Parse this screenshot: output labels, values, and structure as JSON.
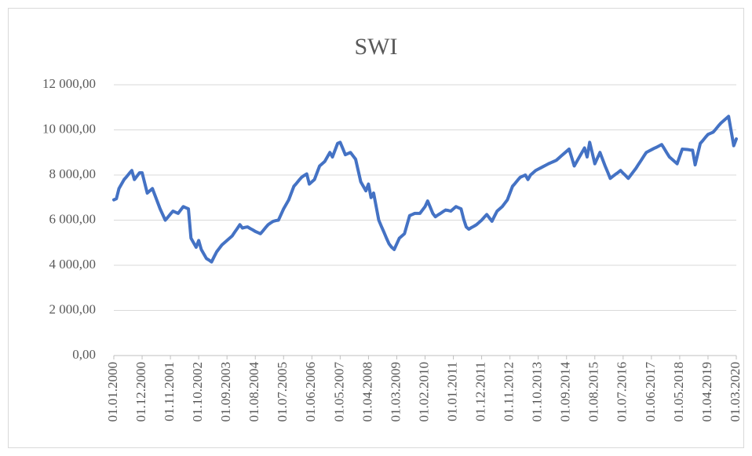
{
  "chart_data": {
    "type": "line",
    "title": "SWI",
    "categories": [
      "01.01.2000",
      null,
      null,
      null,
      null,
      null,
      null,
      null,
      null,
      null,
      null,
      "01.12.2000",
      null,
      null,
      null,
      null,
      null,
      null,
      null,
      null,
      null,
      null,
      "01.11.2001",
      null,
      null,
      null,
      null,
      null,
      null,
      null,
      null,
      null,
      null,
      "01.10.2002",
      null,
      null,
      null,
      null,
      null,
      null,
      null,
      null,
      null,
      null,
      "01.09.2003",
      null,
      null,
      null,
      null,
      null,
      null,
      null,
      null,
      null,
      null,
      "01.08.2004",
      null,
      null,
      null,
      null,
      null,
      null,
      null,
      null,
      null,
      null,
      "01.07.2005",
      null,
      null,
      null,
      null,
      null,
      null,
      null,
      null,
      null,
      null,
      "01.06.2006",
      null,
      null,
      null,
      null,
      null,
      null,
      null,
      null,
      null,
      null,
      "01.05.2007",
      null,
      null,
      null,
      null,
      null,
      null,
      null,
      null,
      null,
      null,
      "01.04.2008",
      null,
      null,
      null,
      null,
      null,
      null,
      null,
      null,
      null,
      null,
      "01.03.2009",
      null,
      null,
      null,
      null,
      null,
      null,
      null,
      null,
      null,
      null,
      "01.02.2010",
      null,
      null,
      null,
      null,
      null,
      null,
      null,
      null,
      null,
      null,
      "01.01.2011",
      null,
      null,
      null,
      null,
      null,
      null,
      null,
      null,
      null,
      null,
      "01.12.2011",
      null,
      null,
      null,
      null,
      null,
      null,
      null,
      null,
      null,
      null,
      "01.11.2012",
      null,
      null,
      null,
      null,
      null,
      null,
      null,
      null,
      null,
      null,
      "01.10.2013",
      null,
      null,
      null,
      null,
      null,
      null,
      null,
      null,
      null,
      null,
      "01.09.2014",
      null,
      null,
      null,
      null,
      null,
      null,
      null,
      null,
      null,
      null,
      "01.08.2015",
      null,
      null,
      null,
      null,
      null,
      null,
      null,
      null,
      null,
      null,
      "01.07.2016",
      null,
      null,
      null,
      null,
      null,
      null,
      null,
      null,
      null,
      null,
      "01.06.2017",
      null,
      null,
      null,
      null,
      null,
      null,
      null,
      null,
      null,
      null,
      "01.05.2018",
      null,
      null,
      null,
      null,
      null,
      null,
      null,
      null,
      null,
      null,
      "01.04.2019",
      null,
      null,
      null,
      null,
      null,
      null,
      null,
      null,
      null,
      null,
      "01.03.2020"
    ],
    "series": [
      {
        "name": "SWI",
        "color": "#4472c4",
        "values": [
          6900,
          6950,
          7400,
          7600,
          7800,
          7930,
          8070,
          8200,
          7800,
          7950,
          8100,
          8100,
          7650,
          7200,
          7300,
          7400,
          7100,
          6800,
          6500,
          6250,
          6000,
          6130,
          6270,
          6400,
          6350,
          6300,
          6450,
          6600,
          6550,
          6500,
          5200,
          5000,
          4800,
          5100,
          4700,
          4500,
          4300,
          4230,
          4150,
          4380,
          4600,
          4750,
          4900,
          5000,
          5100,
          5200,
          5300,
          5470,
          5630,
          5800,
          5650,
          5680,
          5700,
          5630,
          5570,
          5500,
          5450,
          5400,
          5530,
          5670,
          5800,
          5880,
          5950,
          5980,
          6000,
          6250,
          6500,
          6700,
          6900,
          7200,
          7500,
          7630,
          7770,
          7900,
          7980,
          8050,
          7600,
          7700,
          7800,
          8100,
          8400,
          8500,
          8600,
          8800,
          9000,
          8800,
          9100,
          9400,
          9450,
          9180,
          8900,
          8950,
          9000,
          8850,
          8700,
          8200,
          7700,
          7500,
          7300,
          7600,
          7000,
          7200,
          6600,
          6000,
          5730,
          5470,
          5200,
          4950,
          4800,
          4700,
          4950,
          5200,
          5300,
          5400,
          5800,
          6200,
          6250,
          6300,
          6300,
          6300,
          6450,
          6600,
          6850,
          6580,
          6300,
          6150,
          6230,
          6300,
          6380,
          6450,
          6430,
          6400,
          6500,
          6600,
          6550,
          6500,
          6050,
          5700,
          5600,
          5670,
          5730,
          5800,
          5900,
          6000,
          6130,
          6250,
          6100,
          5950,
          6180,
          6400,
          6500,
          6600,
          6750,
          6900,
          7200,
          7500,
          7630,
          7770,
          7900,
          7950,
          8000,
          7800,
          8000,
          8100,
          8200,
          8260,
          8320,
          8380,
          8440,
          8500,
          8550,
          8600,
          8650,
          8750,
          8850,
          8950,
          9050,
          9150,
          8780,
          8400,
          8600,
          8800,
          9000,
          9200,
          8800,
          9450,
          8980,
          8500,
          8750,
          9000,
          8700,
          8400,
          8130,
          7850,
          7940,
          8030,
          8110,
          8200,
          8080,
          7970,
          7850,
          8000,
          8150,
          8300,
          8480,
          8650,
          8830,
          9000,
          9060,
          9120,
          9180,
          9230,
          9290,
          9350,
          9170,
          8980,
          8800,
          8700,
          8600,
          8500,
          8830,
          9150,
          9140,
          9130,
          9110,
          9100,
          8450,
          8930,
          9400,
          9530,
          9670,
          9800,
          9850,
          9900,
          10030,
          10170,
          10300,
          10400,
          10500,
          10600,
          9950,
          9300,
          9600
        ]
      }
    ],
    "ylim": [
      0,
      12000
    ],
    "yticks": [
      {
        "value": 0,
        "label": "0,00"
      },
      {
        "value": 2000,
        "label": "2 000,00"
      },
      {
        "value": 4000,
        "label": "4 000,00"
      },
      {
        "value": 6000,
        "label": "6 000,00"
      },
      {
        "value": 8000,
        "label": "8 000,00"
      },
      {
        "value": 10000,
        "label": "10 000,00"
      },
      {
        "value": 12000,
        "label": "12 000,00"
      }
    ],
    "grid": true
  }
}
